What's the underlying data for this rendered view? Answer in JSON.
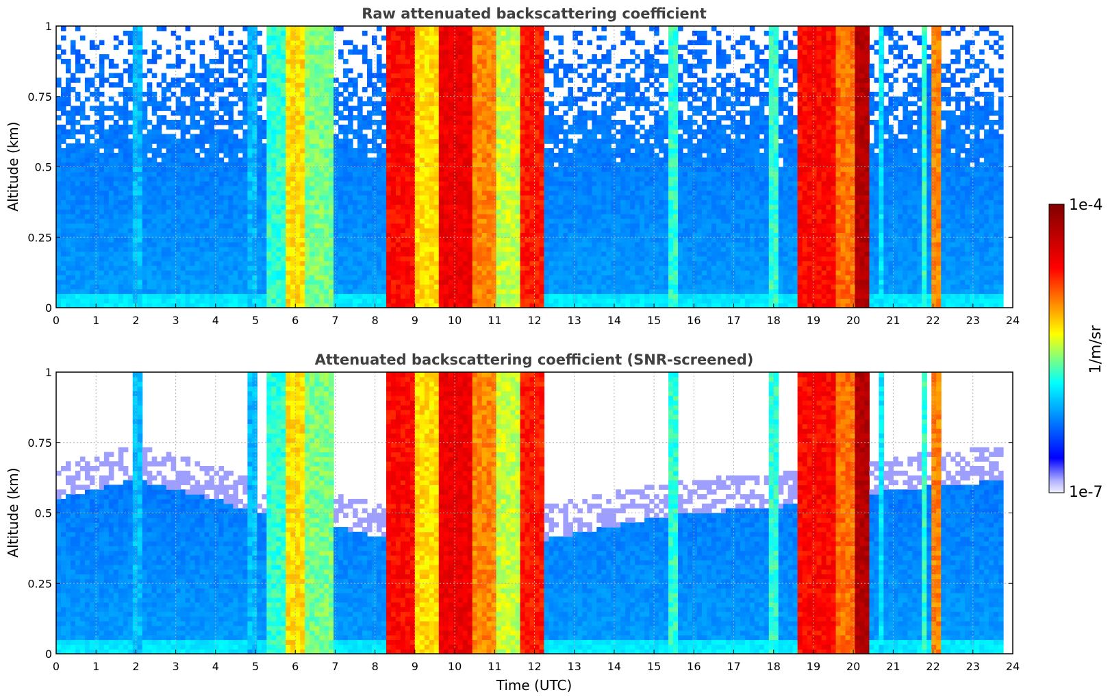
{
  "chart_data": [
    {
      "type": "heatmap",
      "title": "Raw attenuated backscattering coefficient",
      "xlabel": "",
      "ylabel": "Altitude (km)",
      "xlim": [
        0,
        24
      ],
      "ylim": [
        0,
        1
      ],
      "x_ticks": [
        "0",
        "1",
        "2",
        "3",
        "4",
        "5",
        "6",
        "7",
        "8",
        "9",
        "10",
        "11",
        "12",
        "13",
        "14",
        "15",
        "16",
        "17",
        "18",
        "19",
        "20",
        "21",
        "22",
        "23",
        "24"
      ],
      "y_ticks": [
        "0",
        "0.25",
        "0.5",
        "0.75",
        "1"
      ],
      "grid": true,
      "data_end_hour": 23.8,
      "background_level": 0.2,
      "noise_fade_altitude": 0.5,
      "snr_screened": false,
      "cloud_bands": [
        {
          "start": 8.3,
          "end": 9.0,
          "level": 0.82
        },
        {
          "start": 9.0,
          "end": 9.6,
          "level": 0.62
        },
        {
          "start": 9.6,
          "end": 10.4,
          "level": 0.85
        },
        {
          "start": 10.4,
          "end": 11.0,
          "level": 0.7
        },
        {
          "start": 11.0,
          "end": 11.6,
          "level": 0.55
        },
        {
          "start": 11.6,
          "end": 12.2,
          "level": 0.8
        },
        {
          "start": 18.6,
          "end": 19.6,
          "level": 0.82
        },
        {
          "start": 19.6,
          "end": 20.2,
          "level": 0.72
        },
        {
          "start": 20.0,
          "end": 20.4,
          "level": 0.95
        },
        {
          "start": 5.3,
          "end": 5.8,
          "level": 0.45
        },
        {
          "start": 5.8,
          "end": 6.3,
          "level": 0.62
        },
        {
          "start": 6.3,
          "end": 7.0,
          "level": 0.5
        },
        {
          "start": 15.4,
          "end": 15.6,
          "level": 0.45
        },
        {
          "start": 17.9,
          "end": 18.1,
          "level": 0.45
        },
        {
          "start": 21.7,
          "end": 21.8,
          "level": 0.45
        },
        {
          "start": 22.0,
          "end": 22.2,
          "level": 0.7
        },
        {
          "start": 4.8,
          "end": 5.0,
          "level": 0.35
        },
        {
          "start": 1.9,
          "end": 2.2,
          "level": 0.35
        },
        {
          "start": 20.7,
          "end": 20.8,
          "level": 0.4
        }
      ]
    },
    {
      "type": "heatmap",
      "title": "Attenuated backscattering coefficient (SNR-screened)",
      "xlabel": "Time (UTC)",
      "ylabel": "Altitude (km)",
      "xlim": [
        0,
        24
      ],
      "ylim": [
        0,
        1
      ],
      "x_ticks": [
        "0",
        "1",
        "2",
        "3",
        "4",
        "5",
        "6",
        "7",
        "8",
        "9",
        "10",
        "11",
        "12",
        "13",
        "14",
        "15",
        "16",
        "17",
        "18",
        "19",
        "20",
        "21",
        "22",
        "23",
        "24"
      ],
      "y_ticks": [
        "0",
        "0.25",
        "0.5",
        "0.75",
        "1"
      ],
      "grid": true,
      "data_end_hour": 23.8,
      "background_level": 0.2,
      "noise_fade_altitude": 0.5,
      "snr_screened": true,
      "screen_top_km": [
        {
          "x": 0,
          "y": 0.55
        },
        {
          "x": 2,
          "y": 0.62
        },
        {
          "x": 4,
          "y": 0.55
        },
        {
          "x": 5,
          "y": 0.5
        },
        {
          "x": 7,
          "y": 0.45
        },
        {
          "x": 8,
          "y": 0.42
        },
        {
          "x": 12,
          "y": 0.4
        },
        {
          "x": 15,
          "y": 0.48
        },
        {
          "x": 16,
          "y": 0.5
        },
        {
          "x": 18,
          "y": 0.52
        },
        {
          "x": 21,
          "y": 0.58
        },
        {
          "x": 24,
          "y": 0.62
        }
      ],
      "cloud_bands": [
        {
          "start": 8.3,
          "end": 9.0,
          "level": 0.82
        },
        {
          "start": 9.0,
          "end": 9.6,
          "level": 0.62
        },
        {
          "start": 9.6,
          "end": 10.4,
          "level": 0.85
        },
        {
          "start": 10.4,
          "end": 11.0,
          "level": 0.7
        },
        {
          "start": 11.0,
          "end": 11.6,
          "level": 0.55
        },
        {
          "start": 11.6,
          "end": 12.2,
          "level": 0.8
        },
        {
          "start": 18.6,
          "end": 19.6,
          "level": 0.82
        },
        {
          "start": 19.6,
          "end": 20.2,
          "level": 0.72
        },
        {
          "start": 20.0,
          "end": 20.4,
          "level": 0.95
        },
        {
          "start": 5.3,
          "end": 5.8,
          "level": 0.45
        },
        {
          "start": 5.8,
          "end": 6.3,
          "level": 0.62
        },
        {
          "start": 6.3,
          "end": 7.0,
          "level": 0.5
        },
        {
          "start": 15.4,
          "end": 15.6,
          "level": 0.45
        },
        {
          "start": 17.9,
          "end": 18.1,
          "level": 0.45
        },
        {
          "start": 21.7,
          "end": 21.8,
          "level": 0.45
        },
        {
          "start": 22.0,
          "end": 22.2,
          "level": 0.7
        },
        {
          "start": 4.8,
          "end": 5.0,
          "level": 0.35
        },
        {
          "start": 1.9,
          "end": 2.2,
          "level": 0.35
        },
        {
          "start": 20.7,
          "end": 20.8,
          "level": 0.4
        }
      ]
    }
  ],
  "colorbar": {
    "max_label": "1e-4",
    "min_label": "1e-7",
    "unit_label": "1/m/sr",
    "colormap": "jet",
    "colors": [
      "#f0f0ff",
      "#0000ff",
      "#00ffff",
      "#ffff00",
      "#ff0000",
      "#800000"
    ]
  }
}
